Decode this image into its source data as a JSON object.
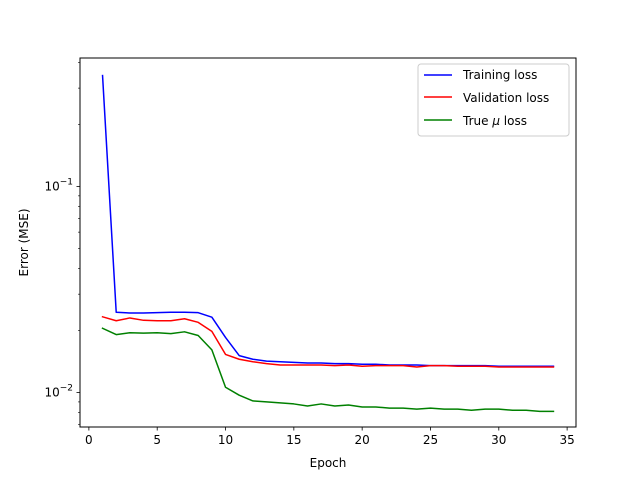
{
  "chart_data": {
    "type": "line",
    "title": "",
    "xlabel": "Epoch",
    "ylabel": "Error (MSE)",
    "xlim": [
      -0.65,
      35.65
    ],
    "ylim": [
      0.0068,
      0.42
    ],
    "yscale": "log",
    "grid": false,
    "legend_position": "top-right",
    "x_ticks": [
      0,
      5,
      10,
      15,
      20,
      25,
      30,
      35
    ],
    "y_major_ticks": [
      {
        "value": 0.01,
        "label_base": "10",
        "label_exp": "−2"
      },
      {
        "value": 0.1,
        "label_base": "10",
        "label_exp": "−1"
      }
    ],
    "x": [
      1,
      2,
      3,
      4,
      5,
      6,
      7,
      8,
      9,
      10,
      11,
      12,
      13,
      14,
      15,
      16,
      17,
      18,
      19,
      20,
      21,
      22,
      23,
      24,
      25,
      26,
      27,
      28,
      29,
      30,
      31,
      32,
      33,
      34
    ],
    "series": [
      {
        "name": "Training loss",
        "color": "#0000ff",
        "values": [
          0.345,
          0.0245,
          0.0243,
          0.0243,
          0.0244,
          0.0245,
          0.0245,
          0.0244,
          0.0232,
          0.0185,
          0.0151,
          0.0145,
          0.0142,
          0.0141,
          0.014,
          0.0139,
          0.0139,
          0.0138,
          0.0138,
          0.0137,
          0.0137,
          0.0136,
          0.0136,
          0.0136,
          0.0135,
          0.0135,
          0.0135,
          0.0135,
          0.0135,
          0.0134,
          0.0134,
          0.0134,
          0.0134,
          0.0134
        ]
      },
      {
        "name": "Validation loss",
        "color": "#ff0000",
        "values": [
          0.0233,
          0.0223,
          0.023,
          0.0224,
          0.0223,
          0.0223,
          0.0228,
          0.0219,
          0.0198,
          0.0153,
          0.0145,
          0.0141,
          0.0138,
          0.0136,
          0.0136,
          0.0136,
          0.0136,
          0.0135,
          0.0136,
          0.0134,
          0.0135,
          0.0135,
          0.0135,
          0.0133,
          0.0135,
          0.0135,
          0.0134,
          0.0134,
          0.0134,
          0.0133,
          0.0133,
          0.0133,
          0.0133,
          0.0133
        ]
      },
      {
        "name": "True μ loss",
        "color": "#008000",
        "values": [
          0.0205,
          0.0191,
          0.0195,
          0.0194,
          0.0195,
          0.0193,
          0.0197,
          0.0189,
          0.0161,
          0.0106,
          0.0097,
          0.0091,
          0.009,
          0.0089,
          0.0088,
          0.0086,
          0.0088,
          0.0086,
          0.0087,
          0.0085,
          0.0085,
          0.0084,
          0.0084,
          0.0083,
          0.0084,
          0.0083,
          0.0083,
          0.0082,
          0.0083,
          0.0083,
          0.0082,
          0.0082,
          0.0081,
          0.0081
        ]
      }
    ],
    "legend": [
      {
        "label": "Training loss",
        "color": "#0000ff"
      },
      {
        "label": "Validation loss",
        "color": "#ff0000"
      },
      {
        "label_prefix": "True ",
        "label_symbol": "μ",
        "label_suffix": " loss",
        "color": "#008000"
      }
    ]
  }
}
